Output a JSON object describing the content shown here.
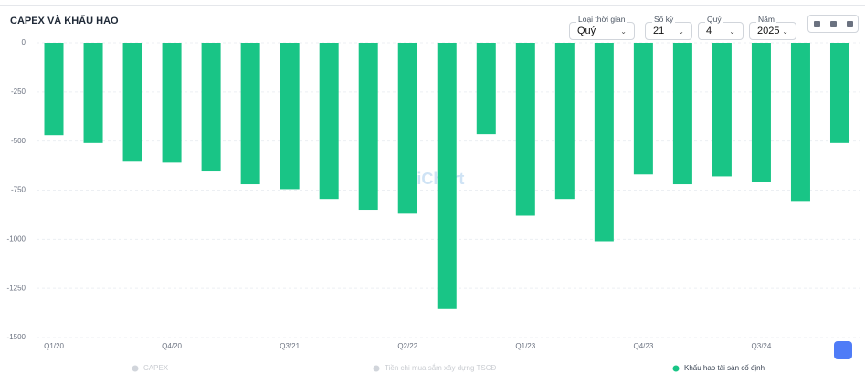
{
  "chart_data": {
    "type": "bar",
    "title": "CAPEX VÀ KHẤU HAO",
    "watermark": "WiChart",
    "controls": [
      {
        "label": "Loại thời gian",
        "value": "Quý"
      },
      {
        "label": "Số kỳ",
        "value": "21"
      },
      {
        "label": "Quý",
        "value": "4"
      },
      {
        "label": "Năm",
        "value": "2025"
      }
    ],
    "categories": [
      "Q1/20",
      null,
      null,
      "Q4/20",
      null,
      null,
      "Q3/21",
      null,
      null,
      "Q2/22",
      null,
      null,
      "Q1/23",
      null,
      null,
      "Q4/23",
      null,
      null,
      "Q3/24",
      null,
      null
    ],
    "series": [
      {
        "name": "CAPEX",
        "color": "#d1d5db",
        "hidden": true,
        "values": [
          null,
          null,
          null,
          null,
          null,
          null,
          null,
          null,
          null,
          null,
          null,
          null,
          null,
          null,
          null,
          null,
          null,
          null,
          null,
          null,
          null
        ]
      },
      {
        "name": "Tiền chi mua sắm xây dựng TSCĐ",
        "color": "#d1d5db",
        "hidden": true,
        "values": [
          null,
          null,
          null,
          null,
          null,
          null,
          null,
          null,
          null,
          null,
          null,
          null,
          null,
          null,
          null,
          null,
          null,
          null,
          null,
          null,
          null
        ]
      },
      {
        "name": "Khấu hao tài sản cố định",
        "color": "#19c586",
        "hidden": false,
        "values": [
          -470,
          -510,
          -605,
          -610,
          -655,
          -720,
          -745,
          -795,
          -850,
          -870,
          -1355,
          -465,
          -880,
          -795,
          -1010,
          -670,
          -720,
          -680,
          -710,
          -805,
          -510
        ]
      }
    ],
    "ylim": [
      -1500,
      0
    ],
    "yticks": [
      0,
      -250,
      -500,
      -750,
      -1000,
      -1250,
      -1500
    ],
    "grid": true
  }
}
